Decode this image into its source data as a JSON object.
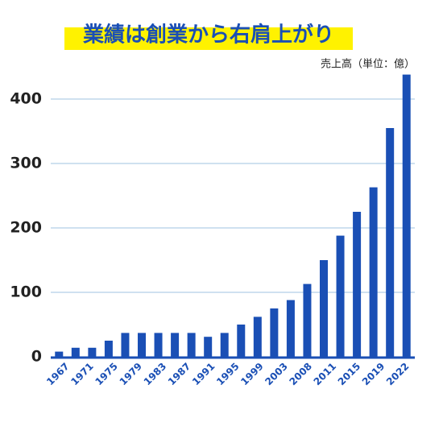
{
  "chart_data": {
    "type": "bar",
    "title": "業績は創業から右肩上がり",
    "unit_label": "売上高（単位：億）",
    "values": [
      8,
      14,
      14,
      25,
      37,
      37,
      37,
      37,
      37,
      31,
      37,
      50,
      62,
      75,
      88,
      113,
      150,
      188,
      225,
      263,
      355,
      438
    ],
    "xtick_labels": [
      "1967",
      "1971",
      "1975",
      "1979",
      "1983",
      "1987",
      "1991",
      "1995",
      "1999",
      "2003",
      "2008",
      "2011",
      "2015",
      "2019",
      "2022"
    ],
    "color": "#1a4fb5",
    "ylim": [
      0,
      440
    ],
    "yticks": [
      0,
      100,
      200,
      300,
      400
    ],
    "grid": true
  }
}
